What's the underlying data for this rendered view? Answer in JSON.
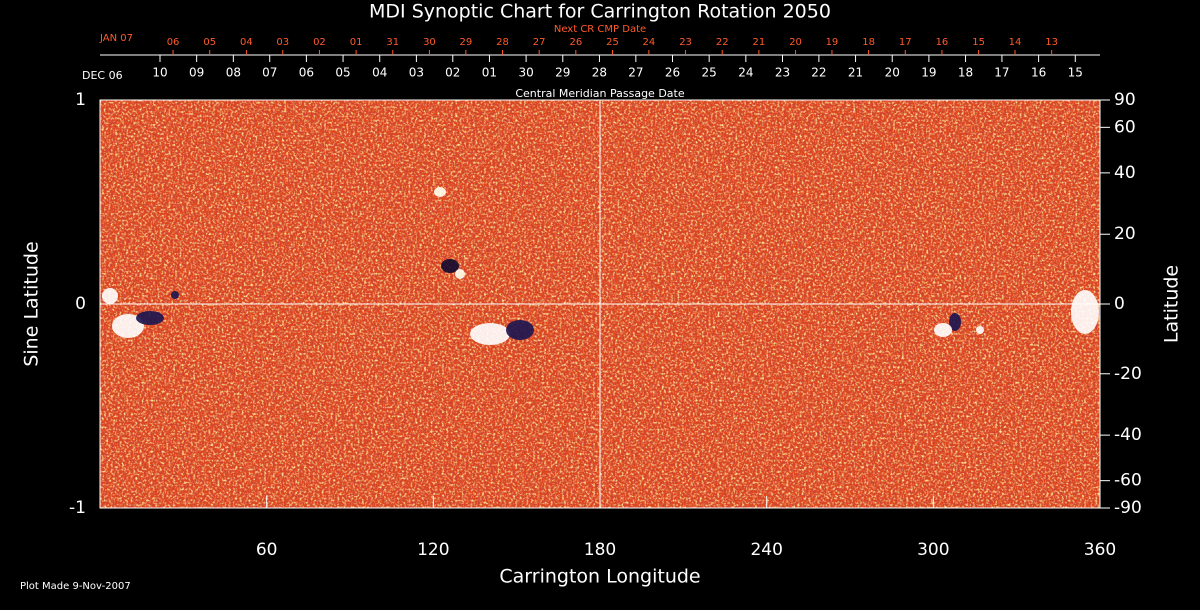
{
  "chart_data": {
    "type": "synoptic-map",
    "title": "MDI Synoptic Chart for Carrington Rotation 2050",
    "xlabel": "Carrington Longitude",
    "ylabel": "Sine Latitude",
    "y2label": "Latitude",
    "xlim": [
      0,
      360
    ],
    "xticks": [
      60,
      120,
      180,
      240,
      300,
      360
    ],
    "ylim": [
      -1,
      1
    ],
    "yticks": [
      -1,
      0,
      1
    ],
    "y2lim": [
      -90,
      90
    ],
    "y2scale": "sine",
    "y2ticks": [
      90,
      60,
      40,
      20,
      0,
      -20,
      -40,
      -60,
      -90
    ],
    "reference_lines": {
      "x": 180,
      "y": 0
    },
    "top_axis_upper": {
      "label": "Next CR CMP Date",
      "start_label": "JAN 07",
      "color": "#ff5a28",
      "ticks": [
        {
          "value": 26.3,
          "label": "06"
        },
        {
          "value": 39.5,
          "label": "05"
        },
        {
          "value": 52.7,
          "label": "04"
        },
        {
          "value": 65.8,
          "label": "03"
        },
        {
          "value": 79.0,
          "label": "02"
        },
        {
          "value": 92.2,
          "label": "01"
        },
        {
          "value": 105.4,
          "label": "31"
        },
        {
          "value": 118.6,
          "label": "30"
        },
        {
          "value": 131.7,
          "label": "29"
        },
        {
          "value": 144.9,
          "label": "28"
        },
        {
          "value": 158.1,
          "label": "27"
        },
        {
          "value": 171.3,
          "label": "26"
        },
        {
          "value": 184.5,
          "label": "25"
        },
        {
          "value": 197.6,
          "label": "24"
        },
        {
          "value": 210.8,
          "label": "23"
        },
        {
          "value": 224.0,
          "label": "22"
        },
        {
          "value": 237.2,
          "label": "21"
        },
        {
          "value": 250.4,
          "label": "20"
        },
        {
          "value": 263.5,
          "label": "19"
        },
        {
          "value": 276.7,
          "label": "18"
        },
        {
          "value": 289.9,
          "label": "17"
        },
        {
          "value": 303.1,
          "label": "16"
        },
        {
          "value": 316.3,
          "label": "15"
        },
        {
          "value": 329.4,
          "label": "14"
        },
        {
          "value": 342.6,
          "label": "13"
        }
      ]
    },
    "top_axis_lower": {
      "label": "Central Meridian Passage Date",
      "start_label": "DEC 06",
      "color": "#ffffff",
      "ticks": [
        {
          "value": 21.6,
          "label": "10"
        },
        {
          "value": 34.8,
          "label": "09"
        },
        {
          "value": 48.0,
          "label": "08"
        },
        {
          "value": 61.1,
          "label": "07"
        },
        {
          "value": 74.3,
          "label": "06"
        },
        {
          "value": 87.5,
          "label": "05"
        },
        {
          "value": 100.7,
          "label": "04"
        },
        {
          "value": 113.9,
          "label": "03"
        },
        {
          "value": 127.0,
          "label": "02"
        },
        {
          "value": 140.2,
          "label": "01"
        },
        {
          "value": 153.4,
          "label": "30"
        },
        {
          "value": 166.6,
          "label": "29"
        },
        {
          "value": 179.8,
          "label": "28"
        },
        {
          "value": 192.9,
          "label": "27"
        },
        {
          "value": 206.1,
          "label": "26"
        },
        {
          "value": 219.3,
          "label": "25"
        },
        {
          "value": 232.5,
          "label": "24"
        },
        {
          "value": 245.7,
          "label": "23"
        },
        {
          "value": 258.8,
          "label": "22"
        },
        {
          "value": 272.0,
          "label": "21"
        },
        {
          "value": 285.2,
          "label": "20"
        },
        {
          "value": 298.4,
          "label": "19"
        },
        {
          "value": 311.6,
          "label": "18"
        },
        {
          "value": 324.7,
          "label": "17"
        },
        {
          "value": 337.9,
          "label": "16"
        },
        {
          "value": 351.1,
          "label": "15"
        }
      ]
    },
    "footnote": "Plot Made  9-Nov-2007"
  }
}
